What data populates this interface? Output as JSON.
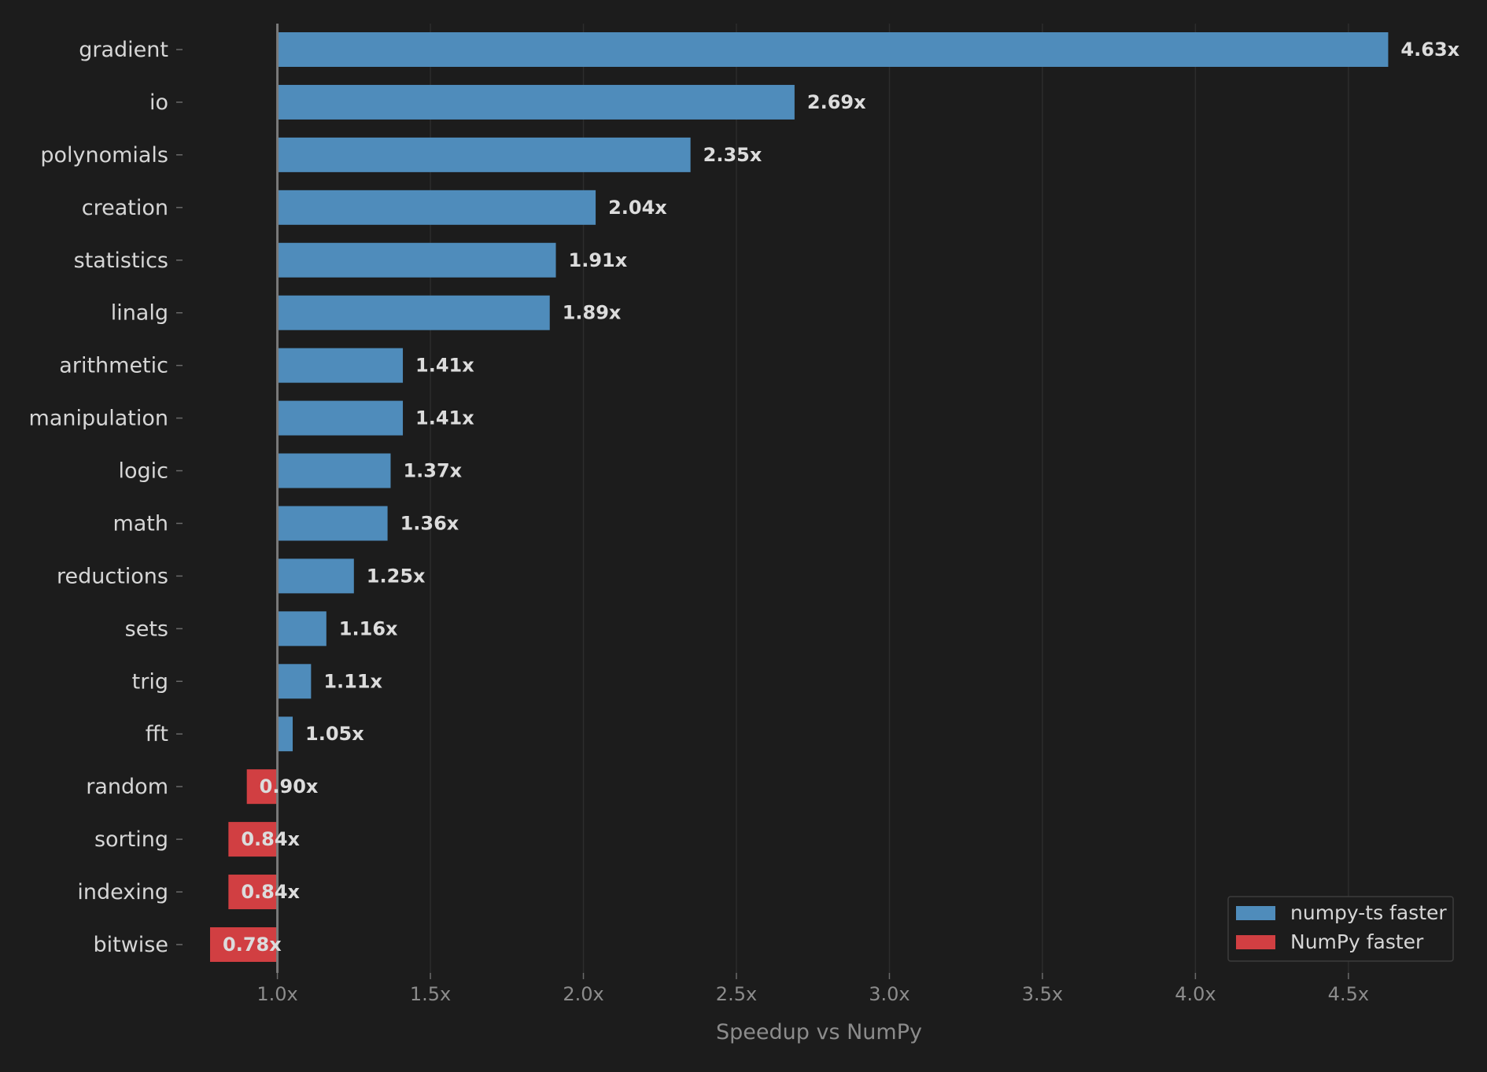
{
  "chart_data": {
    "type": "bar",
    "orientation": "horizontal",
    "categories": [
      "gradient",
      "io",
      "polynomials",
      "creation",
      "statistics",
      "linalg",
      "arithmetic",
      "manipulation",
      "logic",
      "math",
      "reductions",
      "sets",
      "trig",
      "fft",
      "random",
      "sorting",
      "indexing",
      "bitwise"
    ],
    "values": [
      4.63,
      2.69,
      2.35,
      2.04,
      1.91,
      1.89,
      1.41,
      1.41,
      1.37,
      1.36,
      1.25,
      1.16,
      1.11,
      1.05,
      0.9,
      0.84,
      0.84,
      0.78
    ],
    "value_labels": [
      "4.63x",
      "2.69x",
      "2.35x",
      "2.04x",
      "1.91x",
      "1.89x",
      "1.41x",
      "1.41x",
      "1.37x",
      "1.36x",
      "1.25x",
      "1.16x",
      "1.11x",
      "1.05x",
      "0.90x",
      "0.84x",
      "0.84x",
      "0.78x"
    ],
    "baseline": 1.0,
    "xlabel": "Speedup vs NumPy",
    "ylabel": "",
    "title": "",
    "xlim": [
      0.69,
      4.85
    ],
    "xticks": [
      1.0,
      1.5,
      2.0,
      2.5,
      3.0,
      3.5,
      4.0,
      4.5
    ],
    "xtick_labels": [
      "1.0x",
      "1.5x",
      "2.0x",
      "2.5x",
      "3.0x",
      "3.5x",
      "4.0x",
      "4.5x"
    ],
    "grid": "vertical",
    "legend": {
      "placement": "bottom-right",
      "entries": [
        {
          "label": "numpy-ts faster",
          "color": "#4f8cbb"
        },
        {
          "label": "NumPy faster",
          "color": "#d13f42"
        }
      ]
    },
    "colors": {
      "faster": "#4f8cbb",
      "slower": "#d13f42",
      "background": "#1c1c1c",
      "grid": "#2c2c2c",
      "baseline": "#7a7a7a"
    }
  }
}
